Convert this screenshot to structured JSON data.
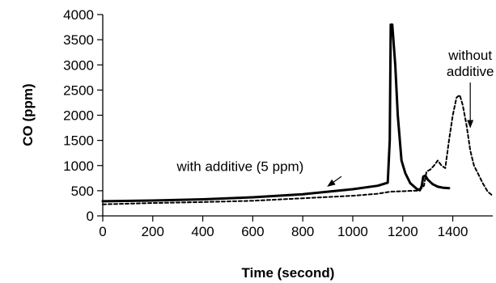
{
  "chart_data": {
    "type": "line",
    "xlabel": "Time (second)",
    "ylabel": "CO (ppm)",
    "xlim": [
      0,
      1560
    ],
    "ylim": [
      0,
      4000
    ],
    "x_ticks": [
      0,
      200,
      400,
      600,
      800,
      1000,
      1200,
      1400
    ],
    "y_ticks": [
      0,
      500,
      1000,
      1500,
      2000,
      2500,
      3000,
      3500,
      4000
    ],
    "grid": false,
    "legend": "none",
    "series": [
      {
        "style": "solid",
        "color": "#000000",
        "points": [
          [
            0,
            290
          ],
          [
            200,
            305
          ],
          [
            400,
            330
          ],
          [
            600,
            370
          ],
          [
            800,
            430
          ],
          [
            1000,
            530
          ],
          [
            1100,
            600
          ],
          [
            1140,
            660
          ],
          [
            1148,
            1500
          ],
          [
            1152,
            3800
          ],
          [
            1158,
            3800
          ],
          [
            1170,
            3000
          ],
          [
            1180,
            2000
          ],
          [
            1195,
            1100
          ],
          [
            1210,
            850
          ],
          [
            1230,
            650
          ],
          [
            1255,
            540
          ],
          [
            1268,
            510
          ],
          [
            1276,
            600
          ],
          [
            1282,
            780
          ],
          [
            1290,
            800
          ],
          [
            1300,
            720
          ],
          [
            1320,
            630
          ],
          [
            1340,
            580
          ],
          [
            1360,
            560
          ],
          [
            1385,
            550
          ]
        ]
      },
      {
        "style": "dashed",
        "color": "#000000",
        "points": [
          [
            0,
            230
          ],
          [
            200,
            255
          ],
          [
            400,
            275
          ],
          [
            600,
            300
          ],
          [
            800,
            350
          ],
          [
            1000,
            400
          ],
          [
            1100,
            440
          ],
          [
            1150,
            480
          ],
          [
            1200,
            490
          ],
          [
            1240,
            500
          ],
          [
            1265,
            500
          ],
          [
            1285,
            600
          ],
          [
            1295,
            880
          ],
          [
            1310,
            920
          ],
          [
            1325,
            1000
          ],
          [
            1340,
            1100
          ],
          [
            1355,
            1000
          ],
          [
            1370,
            950
          ],
          [
            1385,
            1500
          ],
          [
            1400,
            2000
          ],
          [
            1415,
            2350
          ],
          [
            1428,
            2400
          ],
          [
            1440,
            2200
          ],
          [
            1455,
            1800
          ],
          [
            1470,
            1300
          ],
          [
            1485,
            1000
          ],
          [
            1500,
            850
          ],
          [
            1520,
            650
          ],
          [
            1540,
            480
          ],
          [
            1560,
            400
          ]
        ]
      }
    ],
    "annotations": [
      {
        "text": "with additive (5 ppm)",
        "lines": [
          "with additive (5 ppm)"
        ],
        "x": 550,
        "y": 895,
        "arrow_to": [
          900,
          590
        ]
      },
      {
        "text": "without additive",
        "lines": [
          "without",
          "additive"
        ],
        "x": 1470,
        "y": 3100,
        "arrow_to": [
          1470,
          1760
        ]
      }
    ]
  }
}
